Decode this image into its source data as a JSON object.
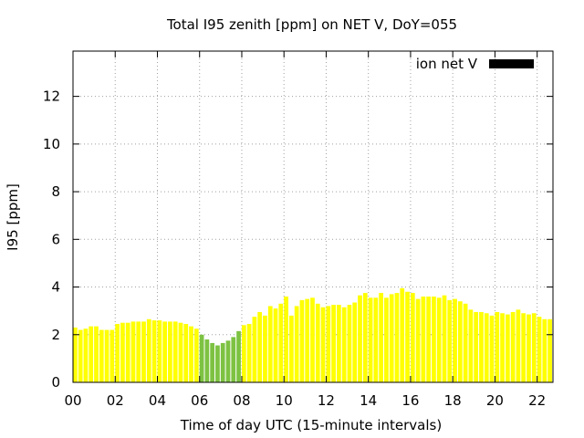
{
  "chart_data": {
    "type": "bar",
    "title": "Total I95 zenith [ppm] on NET V, DoY=055",
    "xlabel": "Time of day UTC (15-minute intervals)",
    "ylabel": "I95 [ppm]",
    "xlim": [
      0,
      22.75
    ],
    "ylim": [
      0,
      13.9
    ],
    "xticks": [
      "00",
      "02",
      "04",
      "06",
      "08",
      "10",
      "12",
      "14",
      "16",
      "18",
      "20",
      "22"
    ],
    "yticks": [
      "0",
      "2",
      "4",
      "6",
      "8",
      "10",
      "12"
    ],
    "grid": true,
    "legend": {
      "placement": "top-right",
      "entries": [
        {
          "name": "ion net V",
          "color": "#000000"
        }
      ]
    },
    "bar_interval_hours": 0.25,
    "colors": {
      "default": "#ffff00",
      "highlight": "#7dc242",
      "edge": "#d9d900"
    },
    "highlight_range": [
      24,
      31
    ],
    "values": [
      2.3,
      2.2,
      2.25,
      2.35,
      2.35,
      2.2,
      2.2,
      2.2,
      2.45,
      2.5,
      2.5,
      2.55,
      2.55,
      2.55,
      2.65,
      2.6,
      2.6,
      2.55,
      2.55,
      2.55,
      2.5,
      2.45,
      2.35,
      2.25,
      2.0,
      1.8,
      1.65,
      1.55,
      1.65,
      1.75,
      1.9,
      2.15,
      2.4,
      2.45,
      2.75,
      2.95,
      2.8,
      3.2,
      3.1,
      3.3,
      3.6,
      2.8,
      3.2,
      3.45,
      3.5,
      3.55,
      3.3,
      3.15,
      3.2,
      3.25,
      3.25,
      3.15,
      3.25,
      3.35,
      3.65,
      3.75,
      3.55,
      3.55,
      3.75,
      3.55,
      3.7,
      3.75,
      3.95,
      3.8,
      3.75,
      3.5,
      3.6,
      3.6,
      3.6,
      3.55,
      3.65,
      3.45,
      3.5,
      3.4,
      3.3,
      3.05,
      2.95,
      2.95,
      2.9,
      2.8,
      2.95,
      2.9,
      2.85,
      2.95,
      3.05,
      2.9,
      2.85,
      2.9,
      2.75,
      2.65,
      2.65
    ]
  }
}
